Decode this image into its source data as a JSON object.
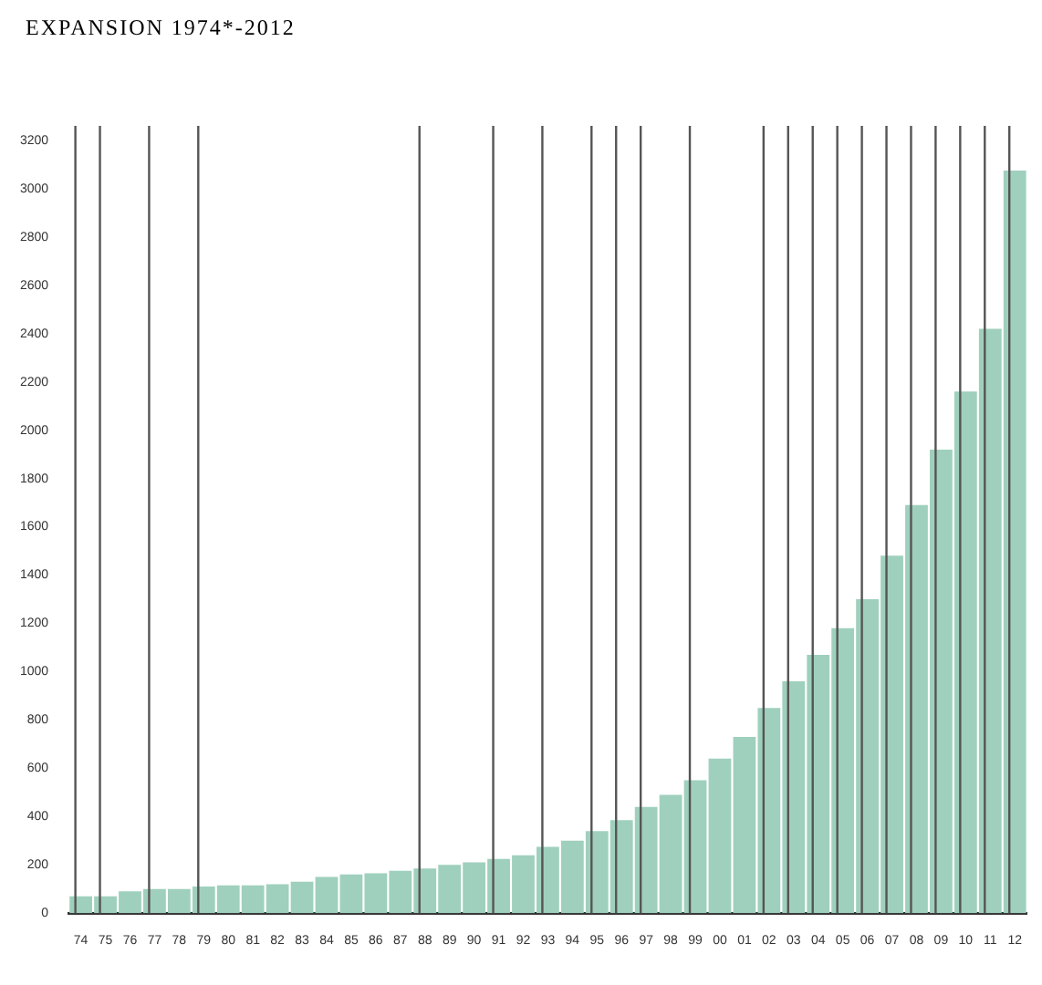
{
  "chart_data": {
    "type": "bar",
    "title": "EXPANSION 1974*-2012",
    "categories": [
      "74",
      "75",
      "76",
      "77",
      "78",
      "79",
      "80",
      "81",
      "82",
      "83",
      "84",
      "85",
      "86",
      "87",
      "88",
      "89",
      "90",
      "91",
      "92",
      "93",
      "94",
      "95",
      "96",
      "97",
      "98",
      "99",
      "00",
      "01",
      "02",
      "03",
      "04",
      "05",
      "06",
      "07",
      "08",
      "09",
      "10",
      "11",
      "12"
    ],
    "values": [
      70,
      70,
      90,
      100,
      100,
      110,
      115,
      115,
      120,
      130,
      150,
      160,
      165,
      175,
      185,
      200,
      210,
      225,
      240,
      275,
      300,
      340,
      385,
      440,
      490,
      550,
      640,
      730,
      850,
      960,
      1070,
      1180,
      1300,
      1480,
      1690,
      1920,
      2160,
      2420,
      3075
    ],
    "color": "#9fd0bd",
    "ylim": [
      0,
      3200
    ],
    "yticks": [
      0,
      200,
      400,
      600,
      800,
      1000,
      1200,
      1400,
      1600,
      1800,
      2000,
      2200,
      2400,
      2600,
      2800,
      3000,
      3200
    ],
    "grid": false,
    "ref_lines": [
      {
        "axis": "x",
        "value": "74"
      },
      {
        "axis": "x",
        "value": "75"
      },
      {
        "axis": "x",
        "value": "77"
      },
      {
        "axis": "x",
        "value": "79"
      },
      {
        "axis": "x",
        "value": "88"
      },
      {
        "axis": "x",
        "value": "91"
      },
      {
        "axis": "x",
        "value": "93"
      },
      {
        "axis": "x",
        "value": "95"
      },
      {
        "axis": "x",
        "value": "96"
      },
      {
        "axis": "x",
        "value": "97"
      },
      {
        "axis": "x",
        "value": "99"
      },
      {
        "axis": "x",
        "value": "02"
      },
      {
        "axis": "x",
        "value": "03"
      },
      {
        "axis": "x",
        "value": "04"
      },
      {
        "axis": "x",
        "value": "05"
      },
      {
        "axis": "x",
        "value": "06"
      },
      {
        "axis": "x",
        "value": "07"
      },
      {
        "axis": "x",
        "value": "08"
      },
      {
        "axis": "x",
        "value": "09"
      },
      {
        "axis": "x",
        "value": "10"
      },
      {
        "axis": "x",
        "value": "11"
      },
      {
        "axis": "x",
        "value": "12"
      }
    ]
  }
}
